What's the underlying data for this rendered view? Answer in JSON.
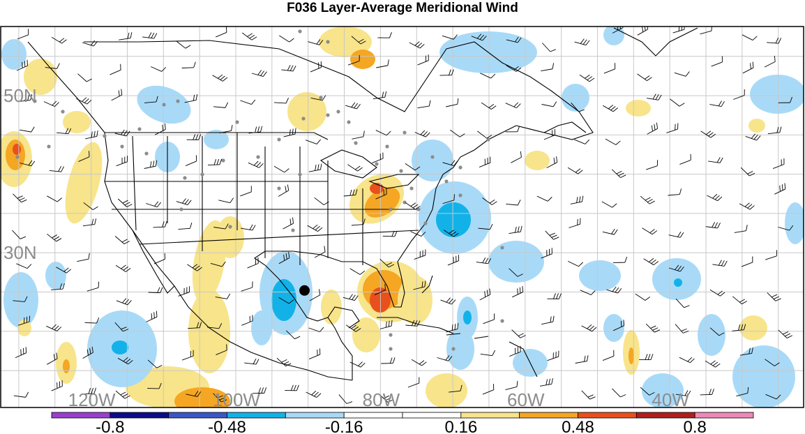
{
  "title": "F036 Layer-Average Meridional Wind",
  "map": {
    "projection": "cylindrical",
    "lat_labels": [
      {
        "label": "50N",
        "lat": 50
      },
      {
        "label": "30N",
        "lat": 30
      }
    ],
    "lon_labels": [
      {
        "label": "120W",
        "lon": -120
      },
      {
        "label": "100W",
        "lon": -100
      },
      {
        "label": "80W",
        "lon": -80
      },
      {
        "label": "60W",
        "lon": -60
      },
      {
        "label": "40W",
        "lon": -40
      }
    ],
    "grid_spacing_deg": 5,
    "storm_marker": {
      "lon": -90.5,
      "lat": 25.2
    },
    "feature_colors": {
      "land_outline": "#000000",
      "grid": "#c8c8c8",
      "observation_dot": "#8c8c8c",
      "wind_barb": "#000000"
    }
  },
  "colorbar": {
    "labels": [
      "-0.8",
      "-0.48",
      "-0.16",
      "0.16",
      "0.48",
      "0.8"
    ],
    "label_values": [
      -0.8,
      -0.48,
      -0.16,
      0.16,
      0.48,
      0.8
    ],
    "bounds": [
      -0.96,
      0.96
    ],
    "segment_colors": [
      "#9a3fd0",
      "#0c0c8c",
      "#3a57c8",
      "#12b2e8",
      "#a8daf8",
      "#ffffff",
      "#ffffff",
      "#f8e48a",
      "#f5a623",
      "#e8501c",
      "#b01e1e",
      "#ee88b8"
    ]
  },
  "shading": {
    "positive_colors": [
      "#f8e48a",
      "#f5a623",
      "#e8501c"
    ],
    "negative_colors": [
      "#a8daf8",
      "#12b2e8",
      "#3a57c8"
    ]
  }
}
